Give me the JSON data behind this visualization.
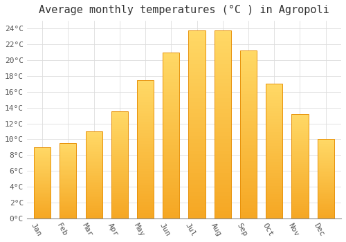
{
  "title": "Average monthly temperatures (°C ) in Agropoli",
  "months": [
    "Jan",
    "Feb",
    "Mar",
    "Apr",
    "May",
    "Jun",
    "Jul",
    "Aug",
    "Sep",
    "Oct",
    "Nov",
    "Dec"
  ],
  "values": [
    9.0,
    9.5,
    11.0,
    13.5,
    17.5,
    21.0,
    23.8,
    23.8,
    21.2,
    17.0,
    13.2,
    10.0
  ],
  "bar_color_bottom": "#F5A623",
  "bar_color_top": "#FFD966",
  "bar_edge_color": "#E8920A",
  "background_color": "#FFFFFF",
  "grid_color": "#DDDDDD",
  "ylim": [
    0,
    25
  ],
  "ytick_step": 2,
  "title_fontsize": 11,
  "tick_fontsize": 8,
  "font_family": "monospace",
  "bar_width": 0.65,
  "xlabel_rotation": -60
}
